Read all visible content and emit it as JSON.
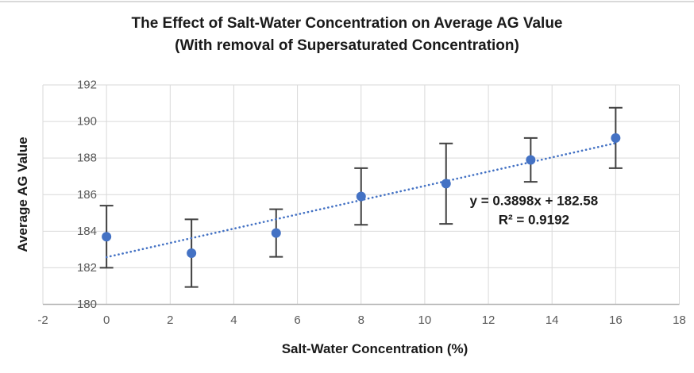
{
  "chart_data": {
    "type": "scatter",
    "title_line1": "The Effect of Salt-Water Concentration on Average AG Value",
    "title_line2": "(With removal of Supersaturated Concentration)",
    "xlabel": "Salt-Water Concentration (%)",
    "ylabel": "Average AG Value",
    "x": [
      0,
      2.67,
      5.33,
      8,
      10.67,
      13.33,
      16
    ],
    "y": [
      183.7,
      182.8,
      183.9,
      185.9,
      186.6,
      187.9,
      189.1
    ],
    "y_error": [
      1.7,
      1.85,
      1.3,
      1.55,
      2.2,
      1.2,
      1.65
    ],
    "xlim": [
      -2,
      18
    ],
    "ylim": [
      180,
      192
    ],
    "x_ticks": [
      -2,
      0,
      2,
      4,
      6,
      8,
      10,
      12,
      14,
      16,
      18
    ],
    "y_ticks": [
      180,
      182,
      184,
      186,
      188,
      190,
      192
    ],
    "grid": true,
    "legend_position": "none",
    "trendline": {
      "slope": 0.3898,
      "intercept": 182.58,
      "x_start": 0,
      "x_end": 16,
      "style": "dotted"
    },
    "annotation": {
      "line1": "y = 0.3898x + 182.58",
      "line2": "R² = 0.9192",
      "x": 13.43,
      "y": 185.66
    },
    "colors": {
      "marker": "#4472c4",
      "trendline": "#4472c4",
      "error_bar": "#404040",
      "gridline": "#d9d9d9",
      "axis_line": "#b3b3b3",
      "tick_label": "#595959",
      "text": "#1a1a1a"
    }
  }
}
